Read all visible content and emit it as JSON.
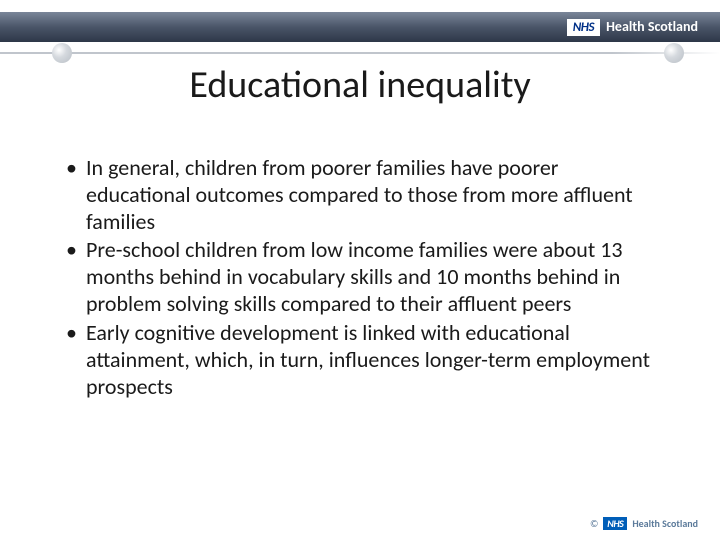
{
  "header": {
    "nhs_box": "NHS",
    "brand_text": "Health Scotland"
  },
  "title": "Educational inequality",
  "bullets": [
    "In general, children from poorer families have poorer educational outcomes compared to those from more affluent families",
    "Pre-school children from low income families were about 13 months behind in vocabulary skills and 10 months behind in problem solving skills compared to their affluent peers",
    "Early cognitive development is linked with educational attainment, which, in turn, influences longer-term employment prospects"
  ],
  "footer": {
    "copyright": "©",
    "nhs_box": "NHS",
    "brand_text": "Health Scotland"
  },
  "colors": {
    "background": "#ffffff",
    "header_gradient_top": "#7a8699",
    "header_gradient_bottom": "#2d3748",
    "nhs_blue": "#005eb8",
    "text": "#1a1a1a",
    "decor_line": "#c0c5cc",
    "footer_text": "#5b7a9a"
  }
}
